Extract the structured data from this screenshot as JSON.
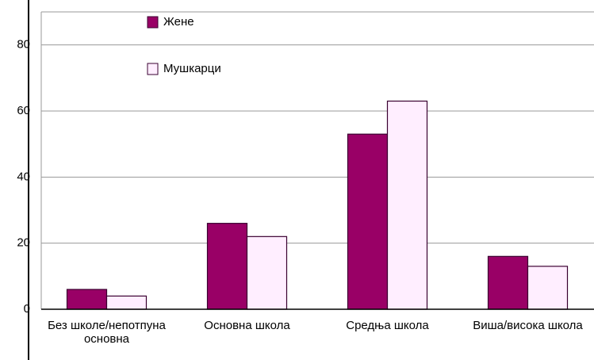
{
  "chart_data": {
    "type": "bar",
    "categories": [
      "Без школе/непотпуна\nосновна",
      "Основна школа",
      "Средња школа",
      "Виша/висока школа"
    ],
    "series": [
      {
        "name": "Жене",
        "color": "#990066",
        "values": [
          6,
          26,
          53,
          16
        ]
      },
      {
        "name": "Мушкарци",
        "color": "#ffeeff",
        "values": [
          4,
          22,
          63,
          13
        ]
      }
    ],
    "ylim": [
      0,
      90
    ],
    "yticks": [
      0,
      20,
      40,
      60,
      80
    ],
    "grid": true
  }
}
